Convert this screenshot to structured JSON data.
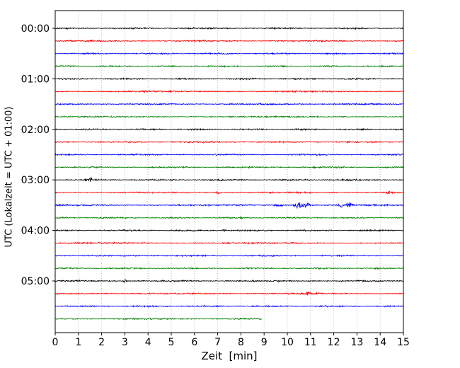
{
  "chart_data": {
    "type": "line",
    "variant": "seismogram-helicorder-dayplot",
    "title": "",
    "xlabel": "Zeit  [min]",
    "ylabel": "UTC (Lokalzeit = UTC + 01:00)",
    "xlim": [
      0,
      15
    ],
    "x_ticks": [
      0,
      1,
      2,
      3,
      4,
      5,
      6,
      7,
      8,
      9,
      10,
      11,
      12,
      13,
      14,
      15
    ],
    "y_ticks": [
      "00:00",
      "01:00",
      "02:00",
      "03:00",
      "04:00",
      "05:00"
    ],
    "minutes_per_line": 15,
    "grid": {
      "vertical": true,
      "style": "dotted",
      "color": "#b0b0b0"
    },
    "colors": {
      "black": "#000000",
      "red": "#ff0000",
      "blue": "#0000ff",
      "green": "#008000"
    },
    "traces": [
      {
        "time": "00:00",
        "color": "black",
        "start_min": 0,
        "end_min": 15,
        "events": []
      },
      {
        "time": "00:15",
        "color": "red",
        "start_min": 0,
        "end_min": 15,
        "events": []
      },
      {
        "time": "00:30",
        "color": "blue",
        "start_min": 0,
        "end_min": 15,
        "events": []
      },
      {
        "time": "00:45",
        "color": "green",
        "start_min": 0,
        "end_min": 15,
        "events": []
      },
      {
        "time": "01:00",
        "color": "black",
        "start_min": 0,
        "end_min": 15,
        "events": []
      },
      {
        "time": "01:15",
        "color": "red",
        "start_min": 0,
        "end_min": 15,
        "events": []
      },
      {
        "time": "01:30",
        "color": "blue",
        "start_min": 0,
        "end_min": 15,
        "events": []
      },
      {
        "time": "01:45",
        "color": "green",
        "start_min": 0,
        "end_min": 15,
        "events": []
      },
      {
        "time": "02:00",
        "color": "black",
        "start_min": 0,
        "end_min": 15,
        "events": []
      },
      {
        "time": "02:15",
        "color": "red",
        "start_min": 0,
        "end_min": 15,
        "events": []
      },
      {
        "time": "02:30",
        "color": "blue",
        "start_min": 0,
        "end_min": 15,
        "events": []
      },
      {
        "time": "02:45",
        "color": "green",
        "start_min": 0,
        "end_min": 15,
        "events": []
      },
      {
        "time": "03:00",
        "color": "black",
        "start_min": 0,
        "end_min": 15,
        "events": [
          {
            "t": 1.5,
            "amp": 4.5,
            "width": 0.05
          }
        ]
      },
      {
        "time": "03:15",
        "color": "red",
        "start_min": 0,
        "end_min": 15,
        "events": [
          {
            "t": 7.0,
            "amp": 1.8,
            "width": 0.1
          },
          {
            "t": 14.4,
            "amp": 2.2,
            "width": 0.12
          }
        ]
      },
      {
        "time": "03:30",
        "color": "blue",
        "start_min": 0,
        "end_min": 15,
        "events": [
          {
            "t": 9.65,
            "amp": 2.5,
            "width": 0.12
          },
          {
            "t": 10.5,
            "amp": 4.5,
            "width": 0.15
          },
          {
            "t": 10.85,
            "amp": 3.5,
            "width": 0.1
          },
          {
            "t": 12.3,
            "amp": 3.2,
            "width": 0.08
          },
          {
            "t": 12.65,
            "amp": 4.2,
            "width": 0.1
          }
        ]
      },
      {
        "time": "03:45",
        "color": "green",
        "start_min": 0,
        "end_min": 15,
        "events": []
      },
      {
        "time": "04:00",
        "color": "black",
        "start_min": 0,
        "end_min": 15,
        "events": [
          {
            "t": 7.3,
            "amp": 1.6,
            "width": 0.08
          }
        ]
      },
      {
        "time": "04:15",
        "color": "red",
        "start_min": 0,
        "end_min": 15,
        "events": []
      },
      {
        "time": "04:30",
        "color": "blue",
        "start_min": 0,
        "end_min": 15,
        "events": []
      },
      {
        "time": "04:45",
        "color": "green",
        "start_min": 0,
        "end_min": 15,
        "events": []
      },
      {
        "time": "05:00",
        "color": "black",
        "start_min": 0,
        "end_min": 15,
        "events": [
          {
            "t": 3.0,
            "amp": 2.4,
            "width": 0.04
          }
        ]
      },
      {
        "time": "05:15",
        "color": "red",
        "start_min": 0,
        "end_min": 15,
        "events": [
          {
            "t": 10.9,
            "amp": 2.8,
            "width": 0.07
          }
        ]
      },
      {
        "time": "05:30",
        "color": "blue",
        "start_min": 0,
        "end_min": 15,
        "events": []
      },
      {
        "time": "05:45",
        "color": "green",
        "start_min": 0,
        "end_min": 8.9,
        "events": []
      }
    ]
  }
}
